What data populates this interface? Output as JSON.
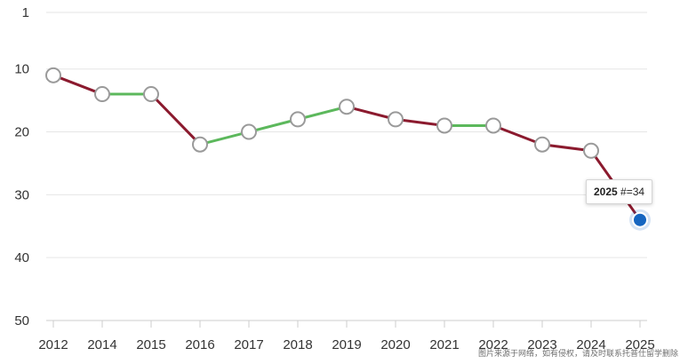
{
  "chart_data": {
    "type": "line",
    "title": "",
    "xlabel": "",
    "ylabel": "",
    "categories": [
      "2012",
      "2014",
      "2015",
      "2016",
      "2017",
      "2018",
      "2019",
      "2020",
      "2021",
      "2022",
      "2023",
      "2024",
      "2025"
    ],
    "series": [
      {
        "values": [
          11,
          14,
          14,
          22,
          20,
          18,
          16,
          18,
          19,
          19,
          22,
          23,
          34
        ]
      }
    ],
    "y_axis": {
      "range": [
        1,
        50
      ],
      "inverted": true,
      "ticks": [
        1,
        10,
        20,
        30,
        40,
        50
      ]
    },
    "grid": true,
    "colors": {
      "decline": "#8b1a2e",
      "improve": "#5cb85c",
      "flat": "#5cb85c",
      "highlight": "#1565c0"
    },
    "highlight": {
      "category": "2025",
      "value": 34
    }
  },
  "tooltip": {
    "year": "2025",
    "label": "#=34"
  },
  "watermark": "图片来源于网络，如有侵权，请及时联系托普仕留学删除"
}
